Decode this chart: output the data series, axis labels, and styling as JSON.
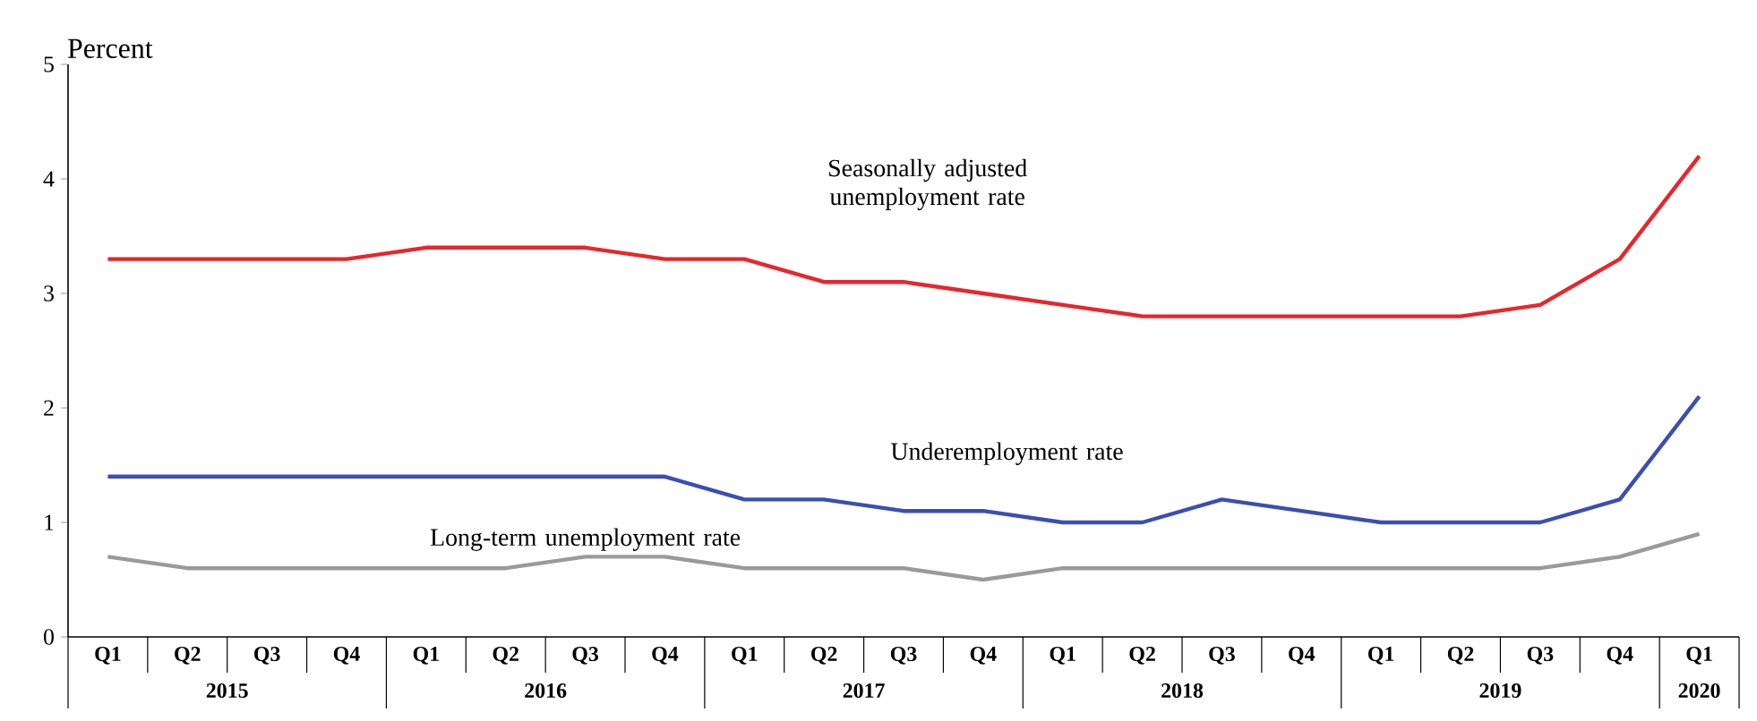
{
  "chart_data": {
    "type": "line",
    "ylabel": "Percent",
    "categories": [
      "Q1",
      "Q2",
      "Q3",
      "Q4",
      "Q1",
      "Q2",
      "Q3",
      "Q4",
      "Q1",
      "Q2",
      "Q3",
      "Q4",
      "Q1",
      "Q2",
      "Q3",
      "Q4",
      "Q1",
      "Q2",
      "Q3",
      "Q4",
      "Q1"
    ],
    "annotations": [
      "2015",
      "2016",
      "2017",
      "2018",
      "2019",
      "2020"
    ],
    "ylim": [
      0,
      5
    ],
    "yticks": [
      0,
      1,
      2,
      3,
      4,
      5
    ],
    "marker": "none",
    "line_style": "solid",
    "series": [
      {
        "name": "Seasonally adjusted unemployment rate",
        "color": "#e8262b",
        "values": [
          3.3,
          3.3,
          3.3,
          3.3,
          3.4,
          3.4,
          3.4,
          3.3,
          3.3,
          3.1,
          3.1,
          3.0,
          2.9,
          2.8,
          2.8,
          2.8,
          2.8,
          2.8,
          2.9,
          3.3,
          4.2
        ]
      },
      {
        "name": "Underemployment rate",
        "color": "#3a4fb0",
        "values": [
          1.4,
          1.4,
          1.4,
          1.4,
          1.4,
          1.4,
          1.4,
          1.4,
          1.2,
          1.2,
          1.1,
          1.1,
          1.0,
          1.0,
          1.2,
          1.1,
          1.0,
          1.0,
          1.0,
          1.2,
          2.1
        ]
      },
      {
        "name": "Long-term unemployment rate",
        "color": "#9a9a9a",
        "values": [
          0.7,
          0.6,
          0.6,
          0.6,
          0.6,
          0.6,
          0.7,
          0.7,
          0.6,
          0.6,
          0.6,
          0.5,
          0.6,
          0.6,
          0.6,
          0.6,
          0.6,
          0.6,
          0.6,
          0.7,
          0.9
        ]
      }
    ]
  }
}
